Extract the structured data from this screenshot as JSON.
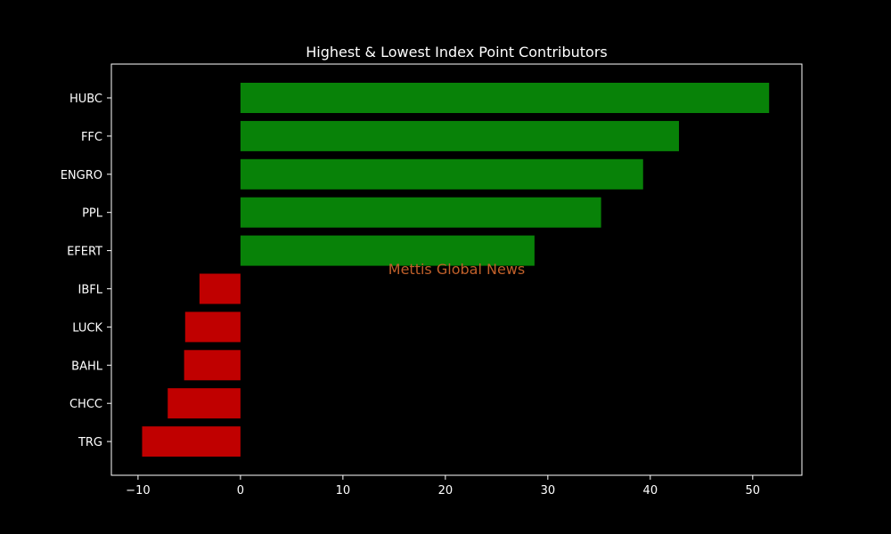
{
  "chart_data": {
    "type": "bar",
    "orientation": "horizontal",
    "title": "Highest & Lowest Index Point Contributors",
    "xlabel": "",
    "ylabel": "",
    "categories": [
      "HUBC",
      "FFC",
      "ENGRO",
      "PPL",
      "EFERT",
      "IBFL",
      "LUCK",
      "BAHL",
      "CHCC",
      "TRG"
    ],
    "values": [
      51.6,
      42.8,
      39.3,
      35.2,
      28.7,
      -4.0,
      -5.4,
      -5.5,
      -7.1,
      -9.6
    ],
    "xlim": [
      -12.6,
      54.8
    ],
    "xticks": [
      -10,
      0,
      10,
      20,
      30,
      40,
      50
    ],
    "xtick_labels": [
      "−10",
      "0",
      "10",
      "20",
      "30",
      "40",
      "50"
    ],
    "grid": false,
    "colors": {
      "positive": "#088208",
      "negative": "#c00000",
      "background": "#000000",
      "axes": "#ffffff",
      "text": "#ffffff"
    },
    "watermark": {
      "text": "Mettis Global News",
      "color": "#c0602a"
    }
  }
}
